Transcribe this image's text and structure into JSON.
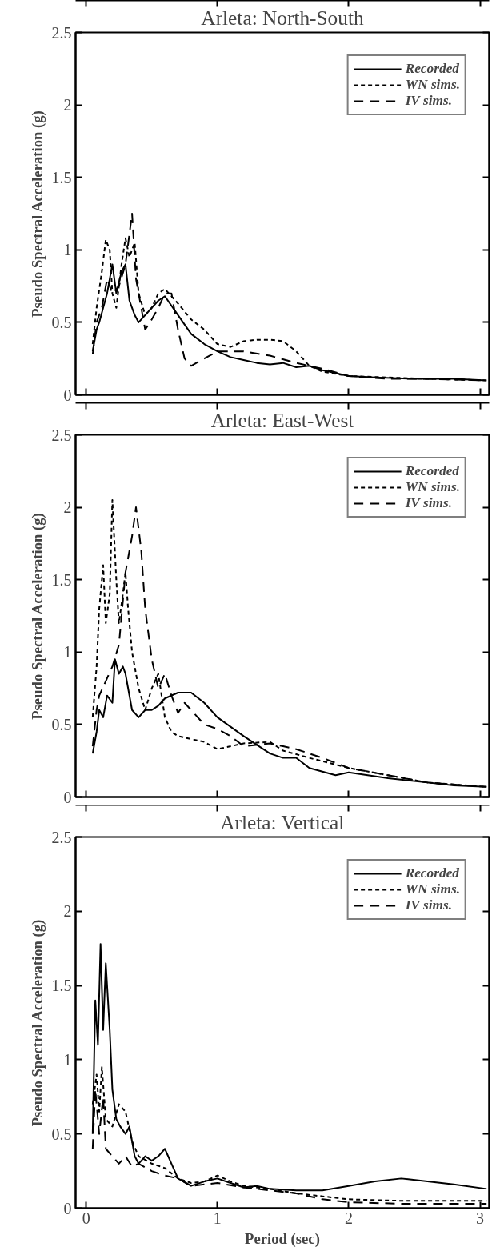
{
  "chart_data": [
    {
      "type": "line",
      "title": "Arleta: North-South",
      "ylabel": "Pseudo Spectral Acceleration (g)",
      "xlim": [
        -0.08,
        3.07
      ],
      "ylim": [
        0,
        2.5
      ],
      "xticks": [
        0,
        1,
        2,
        3
      ],
      "yticks": [
        0,
        0.5,
        1,
        1.5,
        2,
        2.5
      ],
      "tick_labels": "y",
      "grid": false,
      "legend": "top right",
      "series": [
        {
          "name": "Recorded",
          "color": "#000000",
          "line_style": "solid",
          "x": [
            0.05,
            0.08,
            0.1,
            0.13,
            0.16,
            0.2,
            0.23,
            0.27,
            0.3,
            0.33,
            0.37,
            0.4,
            0.45,
            0.5,
            0.55,
            0.6,
            0.7,
            0.8,
            0.9,
            1.0,
            1.1,
            1.2,
            1.3,
            1.4,
            1.5,
            1.6,
            1.7,
            1.8,
            1.9,
            2.0,
            2.2,
            2.5,
            2.8,
            3.05
          ],
          "values": [
            0.3,
            0.45,
            0.5,
            0.6,
            0.7,
            0.9,
            0.7,
            0.85,
            0.9,
            0.65,
            0.55,
            0.5,
            0.55,
            0.6,
            0.65,
            0.68,
            0.55,
            0.42,
            0.35,
            0.3,
            0.26,
            0.24,
            0.22,
            0.21,
            0.22,
            0.19,
            0.2,
            0.17,
            0.15,
            0.13,
            0.12,
            0.11,
            0.11,
            0.1
          ]
        },
        {
          "name": "WN sims.",
          "color": "#000000",
          "line_style": "dotted",
          "x": [
            0.05,
            0.08,
            0.12,
            0.15,
            0.18,
            0.2,
            0.23,
            0.27,
            0.3,
            0.33,
            0.37,
            0.4,
            0.45,
            0.5,
            0.55,
            0.6,
            0.7,
            0.8,
            0.9,
            1.0,
            1.1,
            1.2,
            1.3,
            1.4,
            1.5,
            1.6,
            1.7,
            1.8,
            2.0,
            2.3,
            2.6,
            3.05
          ],
          "values": [
            0.35,
            0.6,
            0.85,
            1.07,
            1.0,
            0.7,
            0.6,
            0.9,
            1.08,
            0.95,
            1.05,
            0.7,
            0.55,
            0.6,
            0.7,
            0.73,
            0.63,
            0.52,
            0.45,
            0.35,
            0.33,
            0.37,
            0.38,
            0.38,
            0.37,
            0.3,
            0.2,
            0.16,
            0.13,
            0.12,
            0.11,
            0.1
          ]
        },
        {
          "name": "IV sims.",
          "color": "#000000",
          "line_style": "dashed",
          "x": [
            0.05,
            0.08,
            0.12,
            0.16,
            0.2,
            0.25,
            0.3,
            0.35,
            0.38,
            0.42,
            0.45,
            0.5,
            0.55,
            0.6,
            0.65,
            0.7,
            0.75,
            0.8,
            0.9,
            1.0,
            1.2,
            1.4,
            1.6,
            1.8,
            2.0,
            2.3,
            2.6,
            3.05
          ],
          "values": [
            0.28,
            0.5,
            0.6,
            0.8,
            0.7,
            0.75,
            0.9,
            1.25,
            0.8,
            0.6,
            0.45,
            0.52,
            0.6,
            0.7,
            0.7,
            0.45,
            0.25,
            0.2,
            0.25,
            0.3,
            0.3,
            0.27,
            0.22,
            0.18,
            0.13,
            0.11,
            0.11,
            0.1
          ]
        }
      ]
    },
    {
      "type": "line",
      "title": "Arleta: East-West",
      "ylabel": "Pseudo Spectral Acceleration (g)",
      "xlim": [
        -0.08,
        3.07
      ],
      "ylim": [
        0,
        2.5
      ],
      "xticks": [
        0,
        1,
        2,
        3
      ],
      "yticks": [
        0,
        0.5,
        1,
        1.5,
        2,
        2.5
      ],
      "tick_labels": "y",
      "grid": false,
      "legend": "top right",
      "series": [
        {
          "name": "Recorded",
          "color": "#000000",
          "line_style": "solid",
          "x": [
            0.05,
            0.08,
            0.1,
            0.13,
            0.16,
            0.2,
            0.22,
            0.25,
            0.28,
            0.3,
            0.35,
            0.4,
            0.45,
            0.5,
            0.55,
            0.6,
            0.7,
            0.8,
            0.9,
            1.0,
            1.2,
            1.4,
            1.5,
            1.6,
            1.7,
            1.9,
            2.0,
            2.3,
            2.6,
            2.8,
            3.05
          ],
          "values": [
            0.3,
            0.45,
            0.6,
            0.55,
            0.7,
            0.65,
            0.95,
            0.85,
            0.9,
            0.85,
            0.6,
            0.55,
            0.6,
            0.6,
            0.63,
            0.68,
            0.72,
            0.72,
            0.65,
            0.55,
            0.42,
            0.3,
            0.27,
            0.27,
            0.2,
            0.15,
            0.17,
            0.13,
            0.1,
            0.08,
            0.07
          ]
        },
        {
          "name": "WN sims.",
          "color": "#000000",
          "line_style": "dotted",
          "x": [
            0.05,
            0.08,
            0.1,
            0.13,
            0.15,
            0.18,
            0.2,
            0.23,
            0.25,
            0.28,
            0.3,
            0.32,
            0.35,
            0.4,
            0.45,
            0.5,
            0.55,
            0.6,
            0.65,
            0.7,
            0.8,
            0.9,
            1.0,
            1.2,
            1.4,
            1.5,
            1.7,
            2.0,
            2.3,
            2.6,
            3.05
          ],
          "values": [
            0.55,
            0.9,
            1.3,
            1.6,
            1.2,
            1.4,
            2.05,
            1.5,
            1.2,
            1.4,
            1.55,
            1.3,
            1.0,
            0.75,
            0.6,
            0.75,
            0.85,
            0.55,
            0.45,
            0.42,
            0.4,
            0.38,
            0.33,
            0.37,
            0.38,
            0.32,
            0.27,
            0.2,
            0.15,
            0.1,
            0.07
          ]
        },
        {
          "name": "IV sims.",
          "color": "#000000",
          "line_style": "dashed",
          "x": [
            0.05,
            0.08,
            0.1,
            0.15,
            0.2,
            0.25,
            0.3,
            0.35,
            0.38,
            0.42,
            0.45,
            0.5,
            0.55,
            0.6,
            0.65,
            0.7,
            0.75,
            0.8,
            0.9,
            1.0,
            1.1,
            1.2,
            1.4,
            1.5,
            1.6,
            1.8,
            2.0,
            2.3,
            2.6,
            3.05
          ],
          "values": [
            0.35,
            0.6,
            0.7,
            0.8,
            0.9,
            1.05,
            1.55,
            1.8,
            2.0,
            1.7,
            1.3,
            0.95,
            0.75,
            0.85,
            0.7,
            0.58,
            0.65,
            0.6,
            0.5,
            0.47,
            0.42,
            0.35,
            0.37,
            0.35,
            0.33,
            0.27,
            0.2,
            0.15,
            0.1,
            0.07
          ]
        }
      ]
    },
    {
      "type": "line",
      "title": "Arleta: Vertical",
      "xlabel": "Period (sec)",
      "ylabel": "Pseudo Spectral Acceleration (g)",
      "xlim": [
        -0.08,
        3.07
      ],
      "ylim": [
        0,
        2.5
      ],
      "xticks": [
        0,
        1,
        2,
        3
      ],
      "yticks": [
        0,
        0.5,
        1,
        1.5,
        2,
        2.5
      ],
      "grid": false,
      "legend": "top right",
      "series": [
        {
          "name": "Recorded",
          "color": "#000000",
          "line_style": "solid",
          "x": [
            0.05,
            0.07,
            0.09,
            0.11,
            0.13,
            0.15,
            0.18,
            0.2,
            0.23,
            0.26,
            0.3,
            0.33,
            0.37,
            0.4,
            0.45,
            0.5,
            0.55,
            0.6,
            0.65,
            0.7,
            0.8,
            0.9,
            1.0,
            1.1,
            1.2,
            1.3,
            1.4,
            1.6,
            1.8,
            2.0,
            2.2,
            2.4,
            2.6,
            2.8,
            3.05
          ],
          "values": [
            0.5,
            1.4,
            1.1,
            1.78,
            1.2,
            1.65,
            1.2,
            0.8,
            0.6,
            0.55,
            0.5,
            0.55,
            0.35,
            0.3,
            0.35,
            0.32,
            0.35,
            0.4,
            0.3,
            0.2,
            0.15,
            0.18,
            0.2,
            0.17,
            0.14,
            0.15,
            0.13,
            0.12,
            0.12,
            0.15,
            0.18,
            0.2,
            0.18,
            0.16,
            0.13
          ]
        },
        {
          "name": "WN sims.",
          "color": "#000000",
          "line_style": "dotted",
          "x": [
            0.05,
            0.08,
            0.1,
            0.12,
            0.15,
            0.2,
            0.25,
            0.3,
            0.35,
            0.4,
            0.5,
            0.6,
            0.7,
            0.8,
            0.9,
            1.0,
            1.1,
            1.2,
            1.4,
            1.6,
            1.8,
            2.0,
            2.4,
            2.8,
            3.05
          ],
          "values": [
            0.7,
            0.9,
            0.65,
            0.95,
            0.6,
            0.55,
            0.7,
            0.65,
            0.45,
            0.35,
            0.3,
            0.27,
            0.2,
            0.17,
            0.18,
            0.22,
            0.18,
            0.15,
            0.13,
            0.1,
            0.08,
            0.06,
            0.05,
            0.05,
            0.05
          ]
        },
        {
          "name": "IV sims.",
          "color": "#000000",
          "line_style": "dashed",
          "x": [
            0.05,
            0.07,
            0.1,
            0.13,
            0.15,
            0.2,
            0.25,
            0.3,
            0.35,
            0.4,
            0.5,
            0.6,
            0.7,
            0.8,
            1.0,
            1.2,
            1.4,
            1.6,
            1.8,
            2.0,
            2.4,
            2.8,
            3.05
          ],
          "values": [
            0.4,
            0.8,
            0.5,
            0.75,
            0.4,
            0.35,
            0.3,
            0.35,
            0.28,
            0.3,
            0.25,
            0.22,
            0.2,
            0.15,
            0.17,
            0.14,
            0.12,
            0.1,
            0.06,
            0.04,
            0.03,
            0.03,
            0.03
          ]
        }
      ]
    }
  ]
}
